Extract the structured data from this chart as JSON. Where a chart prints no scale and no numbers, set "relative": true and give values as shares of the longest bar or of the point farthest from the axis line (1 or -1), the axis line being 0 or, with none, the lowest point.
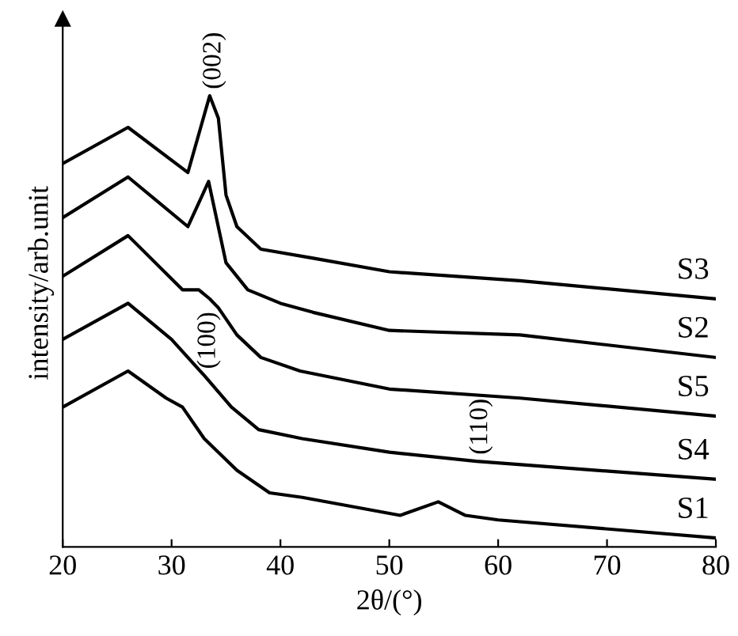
{
  "chart_data": {
    "type": "line",
    "relative": true,
    "xlabel": "2θ/(°)",
    "ylabel": "intensity/arb.unit",
    "xlim": [
      20,
      80
    ],
    "xticks": [
      20,
      30,
      40,
      50,
      60,
      70,
      80
    ],
    "grid": false,
    "legend": false,
    "marker": "none",
    "line_style": "solid",
    "series": [
      {
        "name": "S3",
        "color": "#000000",
        "x": [
          20,
          26,
          31.5,
          33.5,
          34.3,
          35,
          36,
          38.2,
          43,
          50,
          62,
          80
        ],
        "values": [
          0.85,
          0.93,
          0.83,
          1.0,
          0.95,
          0.78,
          0.71,
          0.66,
          0.64,
          0.61,
          0.59,
          0.55
        ]
      },
      {
        "name": "S2",
        "color": "#000000",
        "x": [
          20,
          26,
          31.5,
          33.4,
          35,
          37,
          40,
          43,
          50,
          62,
          80
        ],
        "values": [
          0.73,
          0.82,
          0.71,
          0.81,
          0.63,
          0.57,
          0.54,
          0.52,
          0.48,
          0.47,
          0.42
        ]
      },
      {
        "name": "S5",
        "color": "#000000",
        "x": [
          20,
          26,
          31,
          32.5,
          33.5,
          34.3,
          36,
          38.2,
          41.8,
          50,
          62,
          80
        ],
        "values": [
          0.6,
          0.69,
          0.57,
          0.57,
          0.55,
          0.53,
          0.47,
          0.42,
          0.39,
          0.35,
          0.33,
          0.29
        ]
      },
      {
        "name": "S4",
        "color": "#000000",
        "x": [
          20,
          26,
          30,
          33,
          35.5,
          38,
          42,
          50,
          54,
          58,
          80
        ],
        "values": [
          0.46,
          0.54,
          0.46,
          0.38,
          0.31,
          0.26,
          0.24,
          0.21,
          0.2,
          0.19,
          0.15
        ]
      },
      {
        "name": "S1",
        "color": "#000000",
        "x": [
          20,
          26,
          29.5,
          31,
          33,
          36,
          39,
          42,
          51,
          54.5,
          57,
          60,
          80
        ],
        "values": [
          0.31,
          0.39,
          0.33,
          0.31,
          0.24,
          0.17,
          0.12,
          0.11,
          0.07,
          0.1,
          0.07,
          0.06,
          0.02
        ]
      }
    ],
    "annotations": [
      {
        "text": "(002)",
        "x": 33.5,
        "y": 1.0
      },
      {
        "text": "(100)",
        "x": 33,
        "y": 0.38
      },
      {
        "text": "(110)",
        "x": 58,
        "y": 0.19
      }
    ]
  }
}
